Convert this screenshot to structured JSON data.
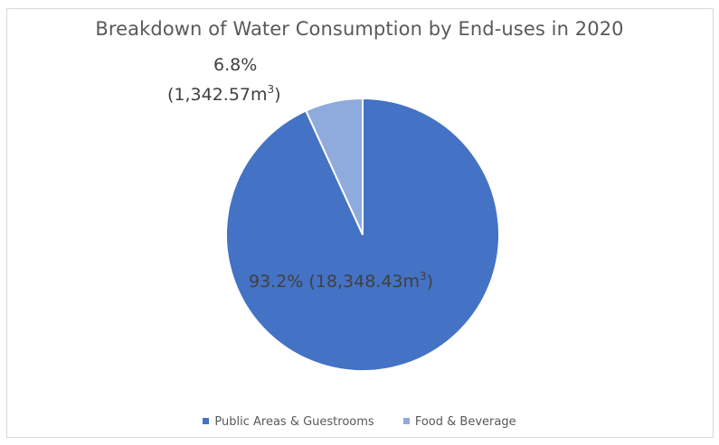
{
  "chart_data": {
    "type": "pie",
    "title": "Breakdown of Water Consumption by End-uses in 2020",
    "categories": [
      "Public Areas & Guestrooms",
      "Food & Beverage"
    ],
    "values": [
      18348.43,
      1342.57
    ],
    "percentages": [
      93.2,
      6.8
    ],
    "data_labels": [
      {
        "percent": "93.2%",
        "amount": "(18,348.43m",
        "sup": "3",
        "close": ")"
      },
      {
        "percent": "6.8%",
        "amount": "(1,342.57m",
        "sup": "3",
        "close": ")"
      }
    ],
    "colors": [
      "#4472c4",
      "#8faadc"
    ],
    "legend_position": "bottom"
  }
}
